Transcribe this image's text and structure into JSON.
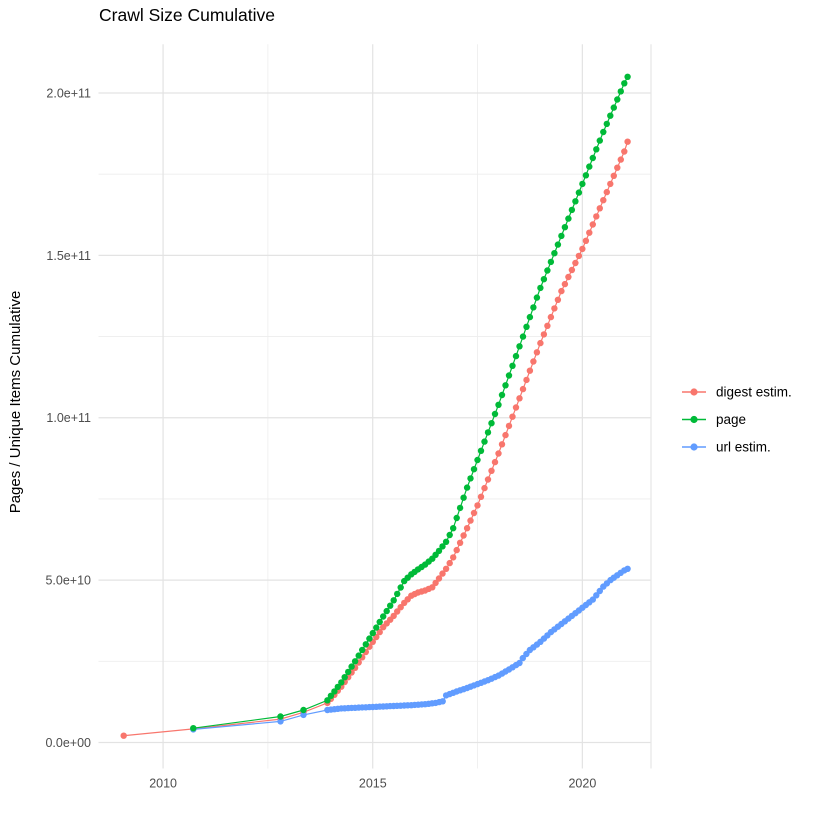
{
  "title": "Crawl Size Cumulative",
  "y_axis": {
    "title": "Pages / Unique Items Cumulative",
    "tick_labels": [
      "0.0e+00",
      "5.0e+10",
      "1.0e+11",
      "1.5e+11",
      "2.0e+11"
    ],
    "tick_values": [
      0,
      50000000000.0,
      100000000000.0,
      150000000000.0,
      200000000000.0
    ],
    "minor_values": [
      25000000000.0,
      75000000000.0,
      125000000000.0,
      175000000000.0
    ]
  },
  "x_axis": {
    "tick_labels": [
      "2010",
      "2015",
      "2020"
    ],
    "tick_values": [
      2010,
      2015,
      2020
    ],
    "minor_values": [
      2012.5,
      2017.5
    ]
  },
  "legend": {
    "entries": [
      {
        "label": "digest estim.",
        "color": "#F8766D"
      },
      {
        "label": "page",
        "color": "#00BA38"
      },
      {
        "label": "url estim.",
        "color": "#619CFF"
      }
    ]
  },
  "colors": {
    "background": "#FFFFFF",
    "gridline_major": "#E3E3E3",
    "gridline_minor": "#EDEDED",
    "panel_edge": "#E7E7E7",
    "axis_text": "#4D4D4D",
    "text": "#000000",
    "digest": "#F8766D",
    "page": "#00BA38",
    "url": "#619CFF"
  },
  "chart_data": {
    "type": "scatter",
    "title": "Crawl Size Cumulative",
    "xlabel": "",
    "ylabel": "Pages / Unique Items Cumulative",
    "xlim": [
      2008.46,
      2021.68
    ],
    "ylim": [
      -8000000000.0,
      215000000000.0
    ],
    "x_major_ticks": [
      2010,
      2015,
      2020
    ],
    "x_minor_ticks": [
      2012.5,
      2017.5
    ],
    "y_major_ticks": [
      0,
      50000000000.0,
      100000000000.0,
      150000000000.0,
      200000000000.0
    ],
    "y_minor_ticks": [
      25000000000.0,
      75000000000.0,
      125000000000.0,
      175000000000.0
    ],
    "grid": true,
    "legend_position": "right",
    "point_interval_years": 0.0833,
    "series": [
      {
        "name": "digest estim.",
        "color": "#F8766D",
        "points": [
          [
            2009.06,
            2100000000.0
          ],
          [
            2010.72,
            4200000000.0
          ],
          [
            2012.8,
            7200000000.0
          ],
          [
            2013.35,
            9300000000.0
          ],
          [
            2013.92,
            12200000000.0
          ],
          [
            2014.25,
            17200000000.0
          ],
          [
            2014.58,
            23000000000.0
          ],
          [
            2014.92,
            29500000000.0
          ],
          [
            2015.25,
            35500000000.0
          ],
          [
            2015.5,
            39000000000.0
          ],
          [
            2015.75,
            43000000000.0
          ],
          [
            2015.92,
            45200000000.0
          ],
          [
            2016.08,
            46200000000.0
          ],
          [
            2016.25,
            46800000000.0
          ],
          [
            2016.42,
            47800000000.0
          ],
          [
            2016.58,
            50500000000.0
          ],
          [
            2016.75,
            53500000000.0
          ],
          [
            2016.92,
            57000000000.0
          ],
          [
            2017.25,
            66000000000.0
          ],
          [
            2017.5,
            73000000000.0
          ],
          [
            2018,
            89000000000.0
          ],
          [
            2018.5,
            106000000000.0
          ],
          [
            2019,
            123000000000.0
          ],
          [
            2019.5,
            139000000000.0
          ],
          [
            2020,
            152000000000.0
          ],
          [
            2020.5,
            167000000000.0
          ],
          [
            2021,
            182000000000.0
          ],
          [
            2021.08,
            185000000000.0
          ]
        ]
      },
      {
        "name": "page",
        "color": "#00BA38",
        "points": [
          [
            2010.72,
            4400000000.0
          ],
          [
            2012.8,
            8000000000.0
          ],
          [
            2013.35,
            10000000000.0
          ],
          [
            2013.92,
            13000000000.0
          ],
          [
            2014.25,
            18500000000.0
          ],
          [
            2014.58,
            25000000000.0
          ],
          [
            2014.92,
            32000000000.0
          ],
          [
            2015.25,
            38800000000.0
          ],
          [
            2015.5,
            43800000000.0
          ],
          [
            2015.75,
            49700000000.0
          ],
          [
            2015.92,
            51800000000.0
          ],
          [
            2016.08,
            53300000000.0
          ],
          [
            2016.25,
            54800000000.0
          ],
          [
            2016.42,
            56600000000.0
          ],
          [
            2016.58,
            59000000000.0
          ],
          [
            2016.75,
            61800000000.0
          ],
          [
            2016.92,
            66000000000.0
          ],
          [
            2017.25,
            78500000000.0
          ],
          [
            2017.5,
            87000000000.0
          ],
          [
            2018,
            104000000000.0
          ],
          [
            2018.5,
            122000000000.0
          ],
          [
            2019,
            140000000000.0
          ],
          [
            2019.5,
            156000000000.0
          ],
          [
            2020,
            172000000000.0
          ],
          [
            2020.5,
            188000000000.0
          ],
          [
            2021,
            203000000000.0
          ],
          [
            2021.08,
            205000000000.0
          ]
        ]
      },
      {
        "name": "url estim.",
        "color": "#619CFF",
        "points": [
          [
            2010.72,
            4050000000.0
          ],
          [
            2012.8,
            6500000000.0
          ],
          [
            2013.35,
            8500000000.0
          ],
          [
            2013.92,
            10000000000.0
          ],
          [
            2014.25,
            10500000000.0
          ],
          [
            2014.58,
            10700000000.0
          ],
          [
            2014.92,
            10900000000.0
          ],
          [
            2015.25,
            11100000000.0
          ],
          [
            2015.58,
            11300000000.0
          ],
          [
            2015.92,
            11500000000.0
          ],
          [
            2016.25,
            11800000000.0
          ],
          [
            2016.5,
            12200000000.0
          ],
          [
            2016.67,
            12700000000.0
          ],
          [
            2016.75,
            14500000000.0
          ],
          [
            2017,
            15700000000.0
          ],
          [
            2017.25,
            16800000000.0
          ],
          [
            2017.5,
            18000000000.0
          ],
          [
            2017.75,
            19200000000.0
          ],
          [
            2018,
            20600000000.0
          ],
          [
            2018.25,
            22500000000.0
          ],
          [
            2018.5,
            24500000000.0
          ],
          [
            2018.58,
            26000000000.0
          ],
          [
            2018.75,
            28500000000.0
          ],
          [
            2019,
            31000000000.0
          ],
          [
            2019.25,
            34000000000.0
          ],
          [
            2019.5,
            36500000000.0
          ],
          [
            2019.75,
            39000000000.0
          ],
          [
            2020,
            41500000000.0
          ],
          [
            2020.25,
            44000000000.0
          ],
          [
            2020.5,
            48000000000.0
          ],
          [
            2020.67,
            50000000000.0
          ],
          [
            2020.83,
            51500000000.0
          ],
          [
            2021,
            53000000000.0
          ],
          [
            2021.08,
            53500000000.0
          ]
        ]
      }
    ]
  }
}
